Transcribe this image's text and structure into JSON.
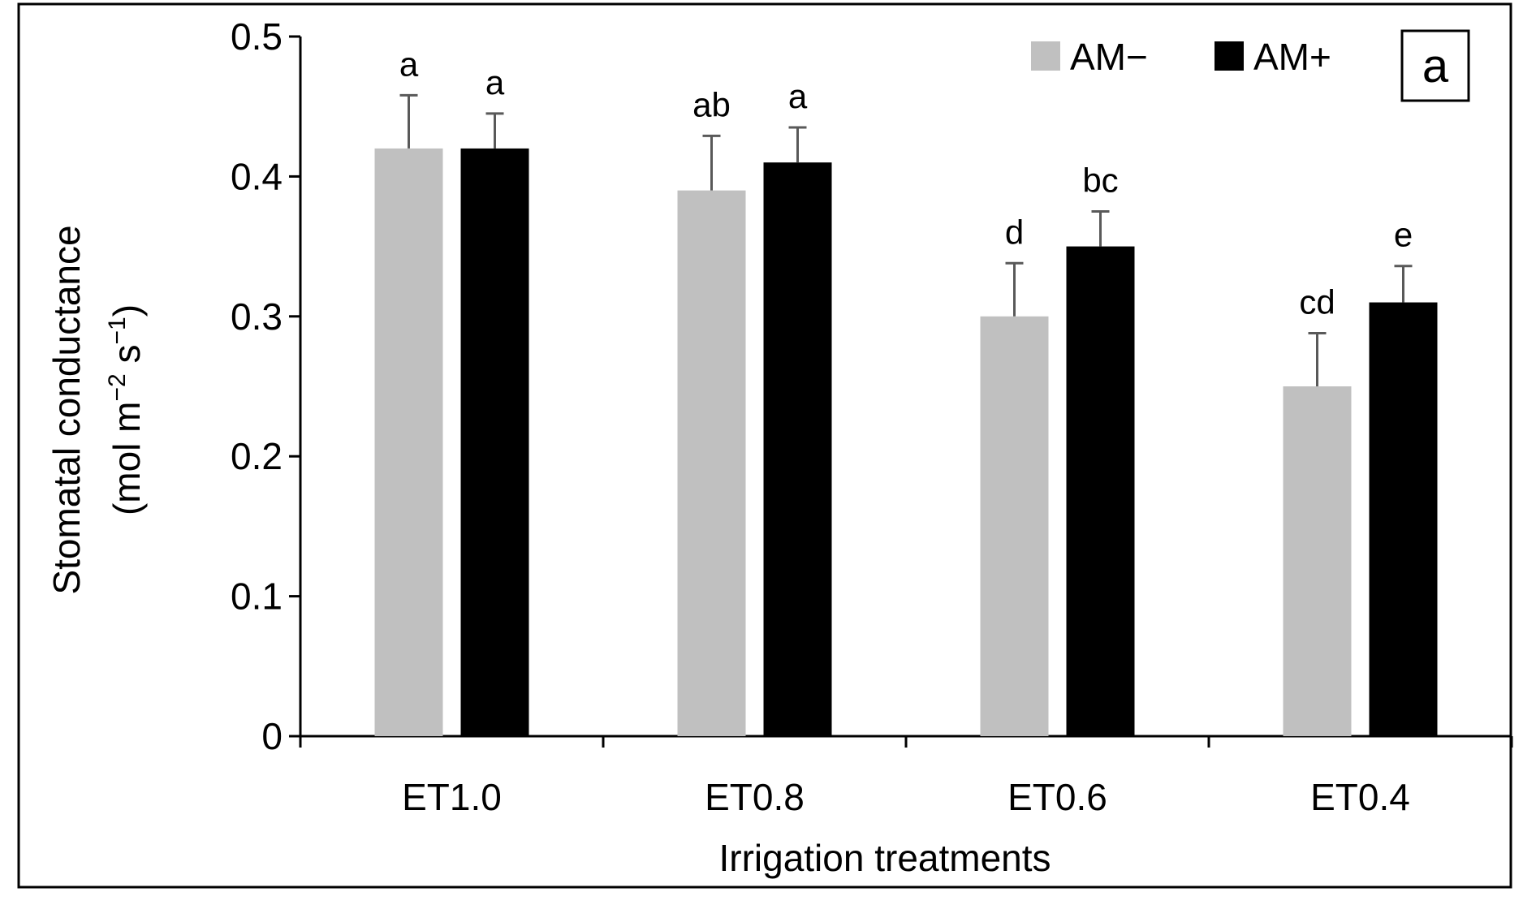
{
  "chart_data": {
    "type": "bar",
    "xlabel": "Irrigation treatments",
    "ylabel_line1": "Stomatal conductance",
    "ylabel_line2_pre": "(mol m",
    "ylabel_line2_sup1": "−2",
    "ylabel_line2_mid": " s",
    "ylabel_line2_sup2": "−1",
    "ylabel_line2_post": ")",
    "ylim": [
      0,
      0.5
    ],
    "yticks": [
      "0",
      "0.1",
      "0.2",
      "0.3",
      "0.4",
      "0.5"
    ],
    "ytick_values": [
      0,
      0.1,
      0.2,
      0.3,
      0.4,
      0.5
    ],
    "categories": [
      "ET1.0",
      "ET0.8",
      "ET0.6",
      "ET0.4"
    ],
    "series": [
      {
        "name": "AM−",
        "color": "#c0c0c0",
        "values": [
          0.42,
          0.39,
          0.3,
          0.25
        ],
        "errors": [
          0.038,
          0.039,
          0.038,
          0.038
        ],
        "letters": [
          "a",
          "ab",
          "d",
          "cd"
        ]
      },
      {
        "name": "AM+",
        "color": "#000000",
        "values": [
          0.42,
          0.41,
          0.35,
          0.31
        ],
        "errors": [
          0.025,
          0.025,
          0.025,
          0.026
        ],
        "letters": [
          "a",
          "a",
          "bc",
          "e"
        ]
      }
    ],
    "legend_position": "top-right",
    "panel_label": "a",
    "error_bar_color": "#595959"
  }
}
